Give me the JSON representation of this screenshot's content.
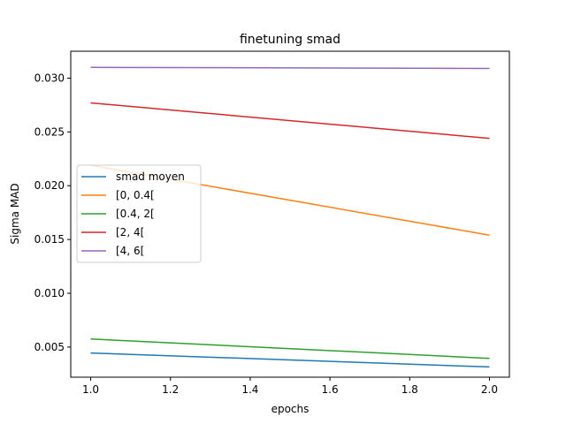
{
  "chart_data": {
    "type": "line",
    "title": "finetuning smad",
    "xlabel": "epochs",
    "ylabel": "Sigma MAD",
    "xlim": [
      0.95,
      2.05
    ],
    "ylim": [
      0.0022,
      0.0325
    ],
    "xticks": [
      1.0,
      1.2,
      1.4,
      1.6,
      1.8,
      2.0
    ],
    "xtick_labels": [
      "1.0",
      "1.2",
      "1.4",
      "1.6",
      "1.8",
      "2.0"
    ],
    "yticks": [
      0.005,
      0.01,
      0.015,
      0.02,
      0.025,
      0.03
    ],
    "ytick_labels": [
      "0.005",
      "0.010",
      "0.015",
      "0.020",
      "0.025",
      "0.030"
    ],
    "grid": false,
    "legend_position": "center-left",
    "x": [
      1.0,
      2.0
    ],
    "series": [
      {
        "name": "smad moyen",
        "color": "#1f77b4",
        "values": [
          0.00445,
          0.00315
        ]
      },
      {
        "name": "[0, 0.4[",
        "color": "#ff7f0e",
        "values": [
          0.0219,
          0.0154
        ]
      },
      {
        "name": "[0.4, 2[",
        "color": "#2ca02c",
        "values": [
          0.00575,
          0.00395
        ]
      },
      {
        "name": "[2, 4[",
        "color": "#d62728",
        "values": [
          0.0277,
          0.0244
        ]
      },
      {
        "name": "[4, 6[",
        "color": "#9467bd",
        "values": [
          0.031,
          0.0309
        ]
      }
    ]
  }
}
